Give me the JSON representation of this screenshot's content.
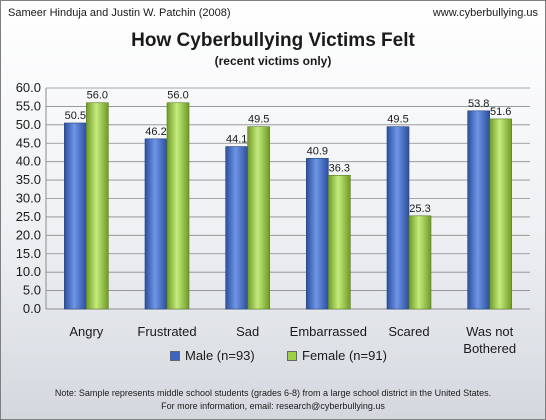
{
  "header": {
    "credit_left": "Sameer Hinduja and Justin W. Patchin (2008)",
    "credit_right": "www.cyberbullying.us"
  },
  "chart_data": {
    "type": "bar",
    "title": "How Cyberbullying Victims Felt",
    "subtitle": "(recent victims only)",
    "categories": [
      "Angry",
      "Frustrated",
      "Sad",
      "Embarrassed",
      "Scared",
      "Was not Bothered"
    ],
    "series": [
      {
        "name": "Male (n=93)",
        "values": [
          50.5,
          46.2,
          44.1,
          40.9,
          49.5,
          53.8
        ],
        "color": "#3b64c4"
      },
      {
        "name": "Female (n=91)",
        "values": [
          56.0,
          56.0,
          49.5,
          36.3,
          25.3,
          51.6
        ],
        "color": "#9cd046"
      }
    ],
    "ylim": [
      0,
      60
    ],
    "yticks": [
      "0.0",
      "5.0",
      "10.0",
      "15.0",
      "20.0",
      "25.0",
      "30.0",
      "35.0",
      "40.0",
      "45.0",
      "50.0",
      "55.0",
      "60.0"
    ],
    "grid": true,
    "legend": "bottom"
  },
  "notes": {
    "line1": "Note: Sample represents middle school students (grades 6-8) from a large school district in the United States.",
    "line2": "For more information, email: research@cyberbullying.us"
  }
}
